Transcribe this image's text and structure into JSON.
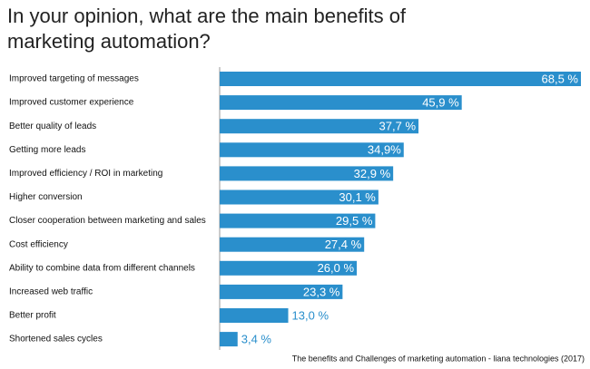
{
  "chart_data": {
    "type": "barh",
    "title": "In your opinion, what are the main benefits of marketing automation?",
    "categories": [
      "Improved targeting of messages",
      "Improved customer experience",
      "Better quality of leads",
      "Getting more leads",
      "Improved efficiency / ROI in marketing",
      "Higher conversion",
      "Closer cooperation between marketing and sales",
      "Cost efficiency",
      "Ability to combine data from different channels",
      "Increased web traffic",
      "Better profit",
      "Shortened sales cycles"
    ],
    "values": [
      68.5,
      45.9,
      37.7,
      34.9,
      32.9,
      30.1,
      29.5,
      27.4,
      26.0,
      23.3,
      13.0,
      3.4
    ],
    "value_labels": [
      "68,5 %",
      "45,9 %",
      "37,7 %",
      "34,9%",
      "32,9 %",
      "30,1 %",
      "29,5 %",
      "27,4 %",
      "26,0 %",
      "23,3 %",
      "13,0 %",
      "3,4 %"
    ],
    "color": "#2a8fcc",
    "source": "The benefits and Challenges of marketing automation - liana technologies (2017)"
  }
}
